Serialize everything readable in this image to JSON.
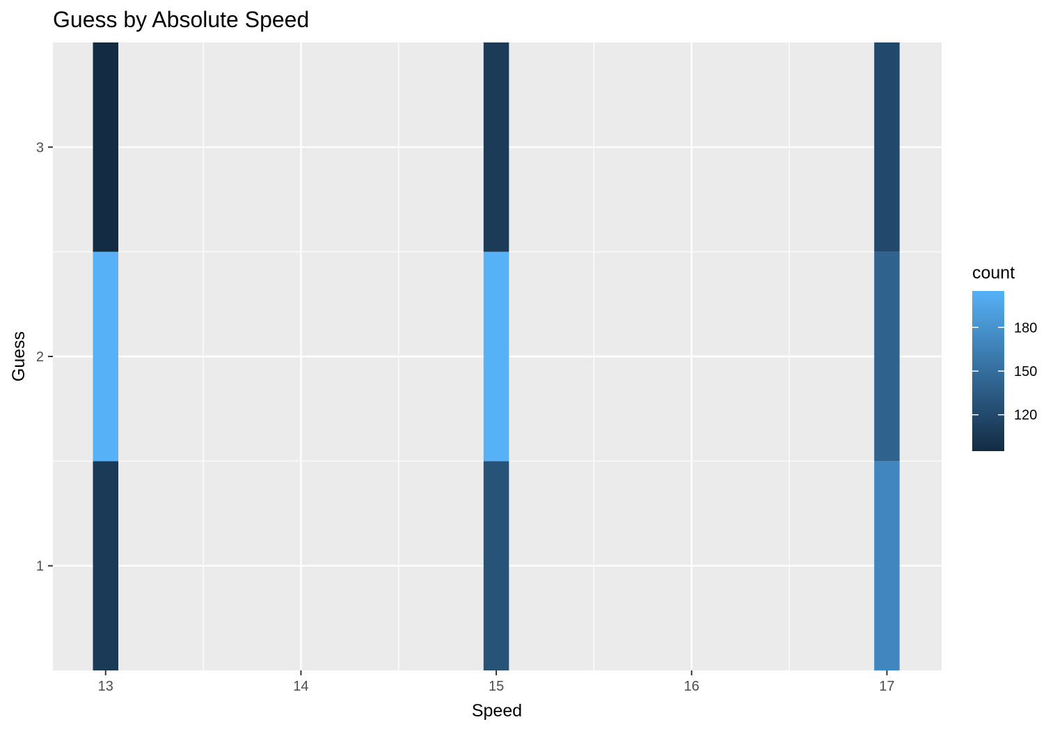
{
  "chart_data": {
    "type": "heatmap",
    "title": "Guess by Absolute Speed",
    "xlabel": "Speed",
    "ylabel": "Guess",
    "x_ticks": [
      "13",
      "14",
      "15",
      "16",
      "17"
    ],
    "y_ticks": [
      "1",
      "2",
      "3"
    ],
    "xlim": [
      12.73,
      17.28
    ],
    "ylim": [
      0.5,
      3.5
    ],
    "grid": true,
    "legend": {
      "title": "count",
      "position": "right",
      "min": 95,
      "max": 205,
      "ticks": [
        120,
        150,
        180
      ],
      "color_low": "#132B43",
      "color_high": "#56B1F7"
    },
    "cells": [
      {
        "x": 13,
        "y": 1,
        "count": 107
      },
      {
        "x": 13,
        "y": 2,
        "count": 205
      },
      {
        "x": 13,
        "y": 3,
        "count": 95
      },
      {
        "x": 15,
        "y": 1,
        "count": 128
      },
      {
        "x": 15,
        "y": 2,
        "count": 205
      },
      {
        "x": 15,
        "y": 3,
        "count": 108
      },
      {
        "x": 17,
        "y": 1,
        "count": 170
      },
      {
        "x": 17,
        "y": 2,
        "count": 141
      },
      {
        "x": 17,
        "y": 3,
        "count": 120
      }
    ]
  }
}
